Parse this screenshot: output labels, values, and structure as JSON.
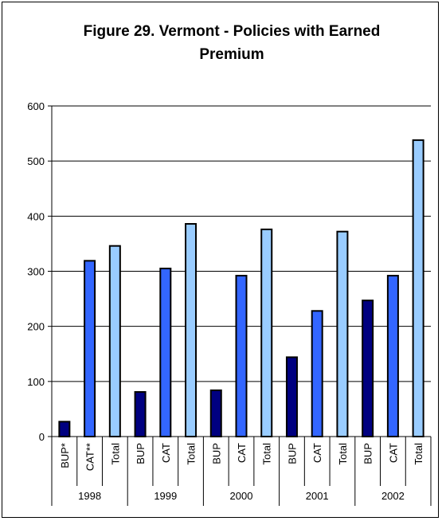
{
  "chart_data": {
    "type": "bar",
    "title_lines": [
      "Figure 29. Vermont - Policies with Earned",
      "Premium"
    ],
    "ylim": [
      0,
      600
    ],
    "yticks": [
      0,
      100,
      200,
      300,
      400,
      500,
      600
    ],
    "grid": true,
    "groups": [
      {
        "label": "1998",
        "bars": [
          {
            "label": "BUP*",
            "kind": "BUP",
            "value": 27
          },
          {
            "label": "CAT**",
            "kind": "CAT",
            "value": 319
          },
          {
            "label": "Total",
            "kind": "Total",
            "value": 346
          }
        ]
      },
      {
        "label": "1999",
        "bars": [
          {
            "label": "BUP",
            "kind": "BUP",
            "value": 81
          },
          {
            "label": "CAT",
            "kind": "CAT",
            "value": 305
          },
          {
            "label": "Total",
            "kind": "Total",
            "value": 386
          }
        ]
      },
      {
        "label": "2000",
        "bars": [
          {
            "label": "BUP",
            "kind": "BUP",
            "value": 84
          },
          {
            "label": "CAT",
            "kind": "CAT",
            "value": 292
          },
          {
            "label": "Total",
            "kind": "Total",
            "value": 376
          }
        ]
      },
      {
        "label": "2001",
        "bars": [
          {
            "label": "BUP",
            "kind": "BUP",
            "value": 144
          },
          {
            "label": "CAT",
            "kind": "CAT",
            "value": 228
          },
          {
            "label": "Total",
            "kind": "Total",
            "value": 372
          }
        ]
      },
      {
        "label": "2002",
        "bars": [
          {
            "label": "BUP",
            "kind": "BUP",
            "value": 247
          },
          {
            "label": "CAT",
            "kind": "CAT",
            "value": 292
          },
          {
            "label": "Total",
            "kind": "Total",
            "value": 538
          }
        ]
      }
    ],
    "colors": {
      "BUP": "#000080",
      "CAT": "#3366ff",
      "Total": "#99ccff"
    }
  }
}
